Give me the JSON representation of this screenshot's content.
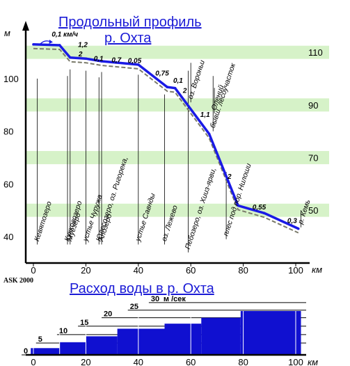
{
  "chart_data": [
    {
      "type": "line",
      "title": "Продольный профиль р. Охта",
      "title_line1": "Продольный профиль",
      "title_line2": "р. Охта",
      "ylabel": "м",
      "xlabel": "км",
      "ylim": [
        35,
        120
      ],
      "xlim": [
        -4,
        105
      ],
      "y_ticks_left": [
        40,
        60,
        80,
        100
      ],
      "y_ticks_right": [
        50,
        70,
        90,
        110
      ],
      "x_ticks": [
        0,
        20,
        40,
        60,
        80,
        100
      ],
      "band_color": "#d6f2c8",
      "line_color": "#1a1ae6",
      "shadow_color": "#7a7a6a",
      "credit": "ASK 2000",
      "series": [
        {
          "x": [
            0,
            10,
            14,
            20,
            26,
            40,
            51,
            54,
            67,
            78,
            88,
            101
          ],
          "values": [
            113,
            112.7,
            108,
            107.6,
            106.6,
            105.3,
            96.8,
            96.4,
            79,
            51.8,
            48.9,
            43
          ]
        }
      ],
      "slope_labels": [
        {
          "text": "0,1 км/ч",
          "x": 7,
          "y": 116
        },
        {
          "text": "1,2",
          "x": 17,
          "y": 112
        },
        {
          "text": "2",
          "x": 17.2,
          "y": 108.5
        },
        {
          "text": "0,1",
          "x": 23,
          "y": 106.8
        },
        {
          "text": "0,7",
          "x": 29.8,
          "y": 106.2
        },
        {
          "text": "0,05",
          "x": 36,
          "y": 106
        },
        {
          "text": "0,75",
          "x": 46.5,
          "y": 101.2
        },
        {
          "text": "0,1",
          "x": 53.3,
          "y": 98.4
        },
        {
          "text": "2",
          "x": 57,
          "y": 94.6
        },
        {
          "text": "1,1",
          "x": 63.6,
          "y": 85.5
        },
        {
          "text": "2",
          "x": 74,
          "y": 62
        },
        {
          "text": "0,55",
          "x": 83.5,
          "y": 50.3
        },
        {
          "text": "0,3",
          "x": 96.8,
          "y": 45.2
        }
      ],
      "annotations": [
        {
          "text": "Кевятозеро",
          "x": 1.5,
          "y": 100,
          "y_end": 37
        },
        {
          "text": "Кукковозеро",
          "x": 13,
          "y": 101,
          "y_end": 37
        },
        {
          "text": "Муезеро",
          "x": 14,
          "y": 103.5,
          "y_end": 37
        },
        {
          "text": "устье Чуружа",
          "x": 20,
          "y": 103,
          "y_end": 37
        },
        {
          "text": "Юлесозеро, оз. Ригорека,",
          "x": 25,
          "y": 100.5,
          "y_end": 37
        },
        {
          "text": "Апозеро",
          "x": 26,
          "y": 102.5,
          "y_end": 37
        },
        {
          "text": "устье Савнды",
          "x": 40,
          "y": 101.5,
          "y_end": 37
        },
        {
          "text": "оз. Лежево",
          "x": 50,
          "y": 94,
          "y_end": 37
        },
        {
          "text": "Пебозеро, оз. Хииз-ярви,",
          "x": 59,
          "y": 103,
          "y_end": 34
        },
        {
          "text": "оз. Вороньи",
          "x": 60,
          "y": 106,
          "y_end": 91
        },
        {
          "text": "бывш. лесоучасток",
          "x": 68.5,
          "y": 80,
          "y_end": 101
        },
        {
          "text": "Олений",
          "x": 69,
          "y": 86.8,
          "y_end": 96.5
        },
        {
          "text": "плес под пор. Нилоши",
          "x": 73.5,
          "y": 64.5,
          "y_end": 39
        },
        {
          "text": "р. Кемь",
          "x": 102,
          "y": 43.5,
          "y_end": 50
        }
      ]
    },
    {
      "type": "bar",
      "title": "Расход воды в р. Охта",
      "xlabel": "км",
      "x_ticks": [
        0,
        20,
        40,
        60,
        80,
        100
      ],
      "xlim": [
        -4,
        105
      ],
      "ylim": [
        0,
        33
      ],
      "unit": "м /сек",
      "bar_color": "#1010d0",
      "steps": [
        {
          "x0": -1,
          "x1": 10,
          "q": 4
        },
        {
          "x0": 10,
          "x1": 20,
          "q": 7.5
        },
        {
          "x0": 20,
          "x1": 32,
          "q": 11
        },
        {
          "x0": 32,
          "x1": 50,
          "q": 15.5
        },
        {
          "x0": 50,
          "x1": 64,
          "q": 18.5
        },
        {
          "x0": 64,
          "x1": 79,
          "q": 22
        },
        {
          "x0": 79,
          "x1": 102,
          "q": 26
        }
      ],
      "flow_labels": [
        {
          "text": "0",
          "x": -4.5,
          "q": 0
        },
        {
          "text": "5",
          "x": 1,
          "q": 7
        },
        {
          "text": "10",
          "x": 9,
          "q": 12
        },
        {
          "text": "15",
          "x": 17,
          "q": 17
        },
        {
          "text": "20",
          "x": 26,
          "q": 22
        },
        {
          "text": "25",
          "x": 36,
          "q": 26.5
        },
        {
          "text": "30",
          "x": 44,
          "q": 31
        }
      ]
    }
  ]
}
